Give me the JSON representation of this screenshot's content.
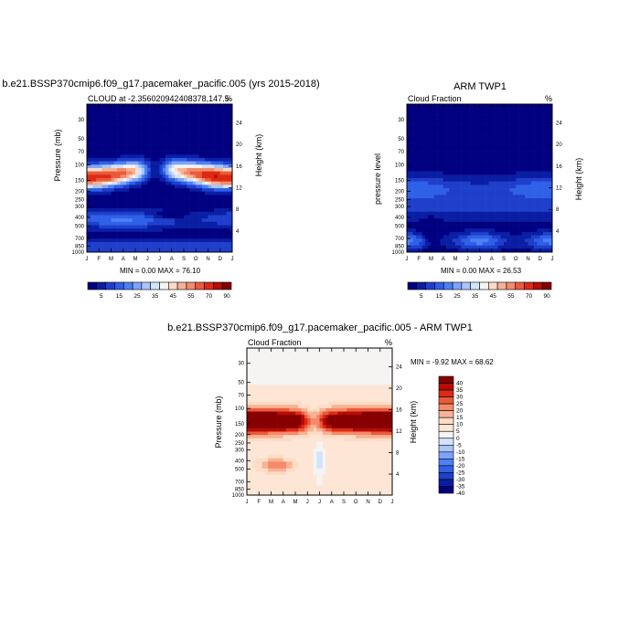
{
  "colors": {
    "seq_palette": [
      "#000080",
      "#0a1ea4",
      "#1f3fcb",
      "#2f60e8",
      "#4d80f5",
      "#7da4f8",
      "#a9c5fa",
      "#d3e3fc",
      "#f6f4f3",
      "#fddcc6",
      "#f8b295",
      "#f38a6a",
      "#ea5a39",
      "#dc2a13",
      "#b70b06",
      "#860000"
    ],
    "diff_palette": [
      "#000080",
      "#0a1ea4",
      "#1f3fcb",
      "#2f60e8",
      "#4d80f5",
      "#7da4f8",
      "#a9c5fa",
      "#d3e3fc",
      "#f6f4f3",
      "#fde6d5",
      "#fddcc6",
      "#f8b295",
      "#f38a6a",
      "#ea5a39",
      "#dc2a13",
      "#b70b06",
      "#860000"
    ]
  },
  "panels": [
    {
      "title": "b.e21.BSSP370cmip6.f09_g17.pacemaker_pacific.005 (yrs 2015-2018)",
      "left_label": "CLOUD at -2.356020942408378,147.5",
      "right_label": "%",
      "ylabel": "Pressure (mb)",
      "y2label": "Height (km)",
      "minmax": "MIN =   0.00 MAX =  76.10",
      "colorbar_labels": [
        "5",
        "15",
        "25",
        "35",
        "45",
        "55",
        "70",
        "90"
      ]
    },
    {
      "title": "ARM TWP1",
      "left_label": "Cloud Fraction",
      "right_label": "%",
      "ylabel": "pressure level",
      "y2label": "Height (km)",
      "minmax": "MIN =   0.00 MAX =  26.53",
      "colorbar_labels": [
        "5",
        "15",
        "25",
        "35",
        "45",
        "55",
        "70",
        "90"
      ]
    },
    {
      "title": "b.e21.BSSP370cmip6.f09_g17.pacemaker_pacific.005 - ARM TWP1",
      "left_label": "Cloud Fraction",
      "right_label": "%",
      "ylabel": "Pressure (mb)",
      "y2label": "Height (km)",
      "minmax": "MIN =  -9.92 MAX =  68.62",
      "colorbar_labels": [
        "40",
        "35",
        "30",
        "25",
        "20",
        "15",
        "10",
        "5",
        "0",
        "-5",
        "-10",
        "-15",
        "-20",
        "-25",
        "-30",
        "-35",
        "-40"
      ]
    }
  ],
  "chart_data": [
    {
      "type": "heatmap",
      "title": "b.e21.BSSP370cmip6.f09_g17.pacemaker_pacific.005 (yrs 2015-2018)",
      "xlabel": "",
      "ylabel": "Pressure (mb)",
      "y2label": "Height (km)",
      "x_ticks": [
        "J",
        "F",
        "M",
        "A",
        "M",
        "J",
        "J",
        "A",
        "S",
        "O",
        "N",
        "D",
        "J"
      ],
      "y_ticks": [
        30,
        50,
        70,
        100,
        150,
        200,
        250,
        300,
        400,
        500,
        700,
        850,
        1000
      ],
      "y2_ticks": [
        4,
        8,
        12,
        16,
        20,
        24
      ],
      "y_scale": "log",
      "ylim": [
        1000,
        20
      ],
      "levels": [
        5,
        10,
        15,
        20,
        25,
        30,
        35,
        40,
        45,
        50,
        55,
        60,
        70,
        80,
        90
      ],
      "min": 0.0,
      "max": 76.1
    },
    {
      "type": "heatmap",
      "title": "ARM TWP1",
      "xlabel": "",
      "ylabel": "pressure level",
      "y2label": "Height (km)",
      "x_ticks": [
        "J",
        "F",
        "M",
        "A",
        "M",
        "J",
        "J",
        "A",
        "S",
        "O",
        "N",
        "D",
        "J"
      ],
      "y_ticks": [
        30,
        50,
        70,
        100,
        150,
        200,
        250,
        300,
        400,
        500,
        700,
        850,
        1000
      ],
      "y2_ticks": [
        4,
        8,
        12,
        16,
        20,
        24
      ],
      "y_scale": "log",
      "ylim": [
        1000,
        20
      ],
      "levels": [
        5,
        10,
        15,
        20,
        25,
        30,
        35,
        40,
        45,
        50,
        55,
        60,
        70,
        80,
        90
      ],
      "min": 0.0,
      "max": 26.53
    },
    {
      "type": "heatmap",
      "title": "b.e21.BSSP370cmip6.f09_g17.pacemaker_pacific.005 - ARM TWP1",
      "xlabel": "",
      "ylabel": "Pressure (mb)",
      "y2label": "Height (km)",
      "x_ticks": [
        "J",
        "F",
        "M",
        "A",
        "M",
        "J",
        "J",
        "A",
        "S",
        "O",
        "N",
        "D",
        "J"
      ],
      "y_ticks": [
        30,
        50,
        70,
        100,
        150,
        200,
        250,
        300,
        400,
        500,
        700,
        850,
        1000
      ],
      "y2_ticks": [
        4,
        8,
        12,
        16,
        20,
        24
      ],
      "y_scale": "log",
      "ylim": [
        1000,
        20
      ],
      "levels": [
        -40,
        -35,
        -30,
        -25,
        -20,
        -15,
        -10,
        -5,
        0,
        5,
        10,
        15,
        20,
        25,
        30,
        35,
        40
      ],
      "min": -9.92,
      "max": 68.62
    }
  ]
}
